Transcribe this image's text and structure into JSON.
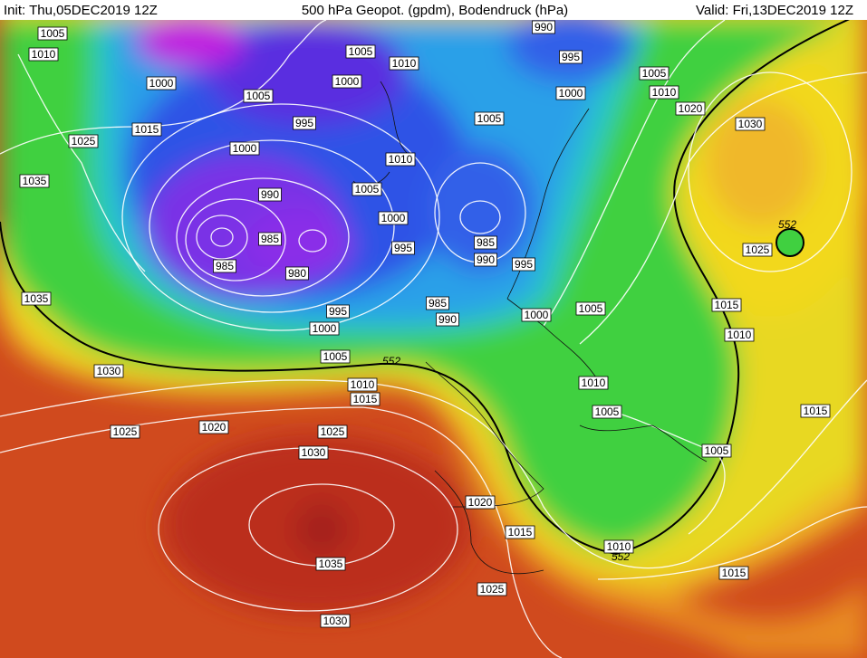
{
  "header": {
    "init": "Init: Thu,05DEC2019 12Z",
    "title": "500 hPa Geopot. (gpdm), Bodendruck (hPa)",
    "valid": "Valid: Fri,13DEC2019 12Z"
  },
  "isobar_labels": [
    "1005",
    "1010",
    "1000",
    "1005",
    "1005",
    "1010",
    "1000",
    "990",
    "995",
    "1005",
    "1000",
    "1010",
    "1020",
    "1030",
    "1015",
    "1025",
    "995",
    "1000",
    "1005",
    "1010",
    "1035",
    "990",
    "1005",
    "1000",
    "985",
    "995",
    "985",
    "990",
    "995",
    "985",
    "980",
    "1025",
    "1035",
    "985",
    "995",
    "990",
    "1000",
    "1005",
    "1015",
    "1010",
    "1000",
    "1005",
    "1030",
    "1010",
    "1015",
    "1010",
    "1005",
    "1015",
    "1025",
    "1020",
    "1025",
    "1030",
    "1005",
    "1020",
    "1015",
    "1010",
    "1035",
    "1015",
    "1025",
    "1030"
  ],
  "geopotential_labels": [
    "552",
    "552",
    "552"
  ]
}
